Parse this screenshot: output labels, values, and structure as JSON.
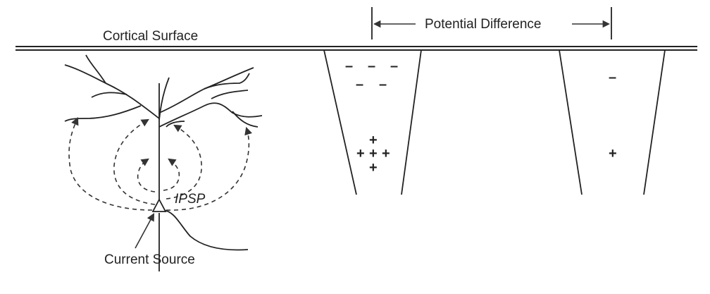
{
  "labels": {
    "cortical_surface": "Cortical Surface",
    "potential_difference": "Potential Difference",
    "ipsp": "IPSP",
    "current_source": "Current Source"
  },
  "electrode_left": {
    "top_signs": [
      "–",
      "–",
      "–"
    ],
    "second_signs": [
      "–",
      "–"
    ],
    "plus_signs": [
      "+",
      "+",
      "+",
      "+",
      "+",
      "+"
    ]
  },
  "electrode_right": {
    "minus_sign": "–",
    "plus_sign": "+"
  },
  "colors": {
    "stroke": "#222222",
    "background": "#ffffff"
  }
}
